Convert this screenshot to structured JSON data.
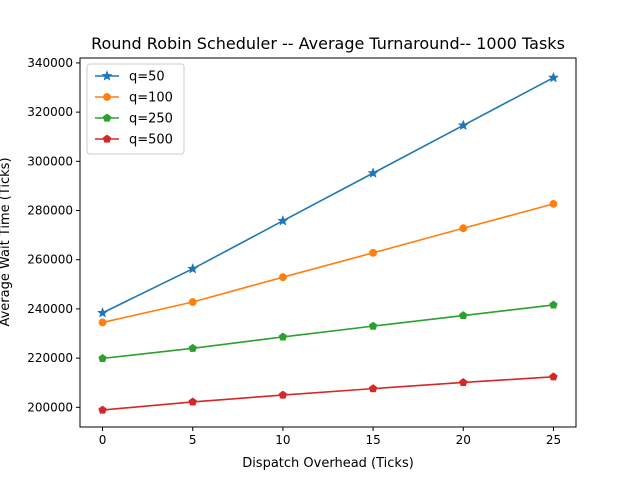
{
  "chart_data": {
    "type": "line",
    "title": "Round Robin Scheduler -- Average Turnaround-- 1000 Tasks",
    "xlabel": "Dispatch Overhead (Ticks)",
    "ylabel": "Average Wait Time (Ticks)",
    "x": [
      0,
      5,
      10,
      15,
      20,
      25
    ],
    "xlim": [
      -1.25,
      26.25
    ],
    "ylim": [
      192000,
      342000
    ],
    "x_ticks": [
      0,
      5,
      10,
      15,
      20,
      25
    ],
    "x_tick_labels": [
      "0",
      "5",
      "10",
      "15",
      "20",
      "25"
    ],
    "y_ticks": [
      200000,
      220000,
      240000,
      260000,
      280000,
      300000,
      320000,
      340000
    ],
    "y_tick_labels": [
      "200000",
      "220000",
      "240000",
      "260000",
      "280000",
      "300000",
      "320000",
      "340000"
    ],
    "grid": false,
    "legend_position": "upper-left",
    "series": [
      {
        "name": "q=50",
        "marker": "star",
        "color": "#1f77b4",
        "values": [
          238400,
          256300,
          275800,
          295200,
          314600,
          334000
        ]
      },
      {
        "name": "q=100",
        "marker": "circle",
        "color": "#ff7f0e",
        "values": [
          234500,
          242800,
          252900,
          262800,
          272800,
          282700
        ]
      },
      {
        "name": "q=250",
        "marker": "pentagon",
        "color": "#2ca02c",
        "values": [
          219900,
          224000,
          228600,
          233000,
          237300,
          241600
        ]
      },
      {
        "name": "q=500",
        "marker": "pentagon",
        "color": "#d62728",
        "values": [
          198900,
          202200,
          205000,
          207600,
          210100,
          212400
        ]
      }
    ]
  }
}
